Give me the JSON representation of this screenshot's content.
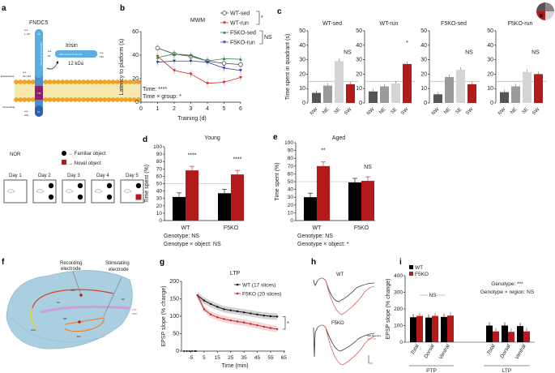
{
  "panel_labels": {
    "a": "a",
    "b": "b",
    "c": "c",
    "d": "d",
    "e": "e",
    "f": "f",
    "g": "g",
    "h": "h",
    "i": "i"
  },
  "panel_a": {
    "protein": "FNDC5",
    "sp": "SP",
    "fn_domain": "Fibronectin III domain",
    "tm": "TM",
    "ct": "Ct",
    "aa_1": "a.a.",
    "aa_1_range": "1–28",
    "aa_29_140_a": "a.a.",
    "aa_29_140": "29–140",
    "aa_209_a": "a.a.",
    "aa_209": "209",
    "extracellular": "Extracellular",
    "intracellular": "Intracellular",
    "irisin": "Irisin",
    "irisin_domain": "Fibronectin III domain",
    "irisin_start_a": "a.a.",
    "irisin_start": "29",
    "irisin_end_a": "a.a.",
    "irisin_end": "140",
    "irisin_size": "12 kDa"
  },
  "nor": {
    "title": "NOR",
    "familiar": "→ Familiar object",
    "novel": "→ Novel object",
    "days": [
      "Day 1",
      "Day 2",
      "Day 3",
      "Day 4",
      "Day 5"
    ],
    "colors": {
      "familiar": "#000000",
      "novel": "#b31b1b"
    }
  },
  "panel_f": {
    "recording": [
      "Recording",
      "electrode"
    ],
    "stimulating": [
      "Stimulating",
      "electrode"
    ],
    "regions": {
      "ca1": "CA1",
      "ca3": "CA3",
      "dg": "DG",
      "sc": "SC",
      "ec": "EC",
      "lpp": "LPP",
      "mpp": "MPP",
      "mp": "MP"
    }
  },
  "panel_h": {
    "wt": "WT",
    "f5ko": "F5KO",
    "baseline": "Baseline",
    "ltp": "LTP"
  },
  "chart_data": [
    {
      "id": "b",
      "type": "line",
      "title": "MWM",
      "xlabel": "Training (d)",
      "ylabel": "Latency to platform (s)",
      "x": [
        1,
        2,
        3,
        4,
        5,
        6
      ],
      "xlim": [
        0,
        6
      ],
      "xticks": [
        0,
        1,
        2,
        3,
        4,
        5,
        6
      ],
      "ylim": [
        0,
        60
      ],
      "yticks": [
        0,
        20,
        40,
        60
      ],
      "series": [
        {
          "name": "WT-sed",
          "values": [
            46,
            41,
            39,
            35,
            33,
            32
          ],
          "color": "#444444",
          "marker": "open-circle"
        },
        {
          "name": "WT-run",
          "values": [
            39,
            27,
            24,
            16,
            17,
            21
          ],
          "color": "#d22b2b",
          "marker": "triangle-down"
        },
        {
          "name": "F5KO-sed",
          "values": [
            38,
            41,
            40,
            35,
            37,
            36.5
          ],
          "color": "#2e8b4e",
          "marker": "triangle-up"
        },
        {
          "name": "F5KO-run",
          "values": [
            34,
            35,
            35,
            34,
            29,
            27
          ],
          "color": "#3a3f9a",
          "marker": "triangle-down"
        }
      ],
      "legend": "top-right",
      "bracket_wt": "*",
      "bracket_f5ko": "NS",
      "stats": [
        "Time: ****",
        "Time × group: *"
      ]
    },
    {
      "id": "c",
      "type": "bar",
      "ylabel": "Time spent in quadrant (s)",
      "categories": [
        "NW",
        "NE",
        "SE",
        "SW"
      ],
      "ylim": [
        0,
        50
      ],
      "yticks": [
        0,
        10,
        20,
        30,
        40,
        50
      ],
      "reference": 15,
      "colors": [
        "#555555",
        "#9a9a9a",
        "#d4d4d4",
        "#b31b1b"
      ],
      "subplots": [
        {
          "title": "WT-sed",
          "values": [
            7,
            12,
            29,
            13
          ],
          "annotation": "NS",
          "annotation_index": 3
        },
        {
          "title": "WT-run",
          "values": [
            8,
            11.5,
            13.5,
            27
          ],
          "annotation": "*",
          "annotation_index": 3
        },
        {
          "title": "F5KO-sed",
          "values": [
            6,
            18,
            23,
            13
          ],
          "annotation": "NS",
          "annotation_index": 3
        },
        {
          "title": "F5KO-run",
          "values": [
            7.5,
            11.5,
            21.5,
            20
          ],
          "annotation": "NS",
          "annotation_index": 3
        }
      ]
    },
    {
      "id": "d",
      "type": "bar",
      "title": "Young",
      "ylabel": "Time spent (%)",
      "categories": [
        "WT",
        "F5KO"
      ],
      "ylim": [
        0,
        100
      ],
      "yticks": [
        0,
        10,
        20,
        30,
        40,
        50,
        60,
        70,
        80,
        90,
        100
      ],
      "reference": 50,
      "series": [
        {
          "name": "Familiar object",
          "values": [
            32,
            37
          ],
          "color": "#000000"
        },
        {
          "name": "Novel object",
          "values": [
            68,
            62.5
          ],
          "color": "#b31b1b"
        }
      ],
      "annotations": [
        "****",
        "****"
      ],
      "stats": [
        "Genotype: NS",
        "Genotype × object: NS"
      ]
    },
    {
      "id": "e",
      "type": "bar",
      "title": "Aged",
      "ylabel": "Time spent (%)",
      "categories": [
        "WT",
        "F5KO"
      ],
      "ylim": [
        0,
        100
      ],
      "yticks": [
        0,
        10,
        20,
        30,
        40,
        50,
        60,
        70,
        80,
        90,
        100
      ],
      "reference": 50,
      "series": [
        {
          "name": "Familiar object",
          "values": [
            30,
            49
          ],
          "color": "#000000"
        },
        {
          "name": "Novel object",
          "values": [
            70,
            51
          ],
          "color": "#b31b1b"
        }
      ],
      "annotations": [
        "**",
        "NS"
      ],
      "stats": [
        "Genotype: NS",
        "Genotype × object: *"
      ]
    },
    {
      "id": "g",
      "type": "line",
      "title": "LTP",
      "xlabel": "Time (min)",
      "ylabel": "EPSP slope (% change)",
      "xticks": [
        -5,
        5,
        15,
        25,
        35,
        45,
        55,
        65
      ],
      "xlim": [
        -12,
        66
      ],
      "ylim": [
        0,
        200
      ],
      "yticks": [
        0,
        50,
        100,
        150,
        200
      ],
      "baseline_x": [
        -10,
        -8,
        -6,
        -4,
        -2,
        -1
      ],
      "baseline_y": [
        0,
        0,
        0,
        0,
        0,
        0
      ],
      "x": [
        0,
        5,
        10,
        15,
        20,
        25,
        30,
        35,
        40,
        45,
        50,
        55,
        60
      ],
      "series": [
        {
          "name": "WT (17 slices)",
          "values": [
            160,
            145,
            135,
            127,
            120,
            117,
            114,
            111,
            108,
            105,
            102,
            100,
            99
          ],
          "color": "#111111"
        },
        {
          "name": "F5KO (20 slices)",
          "values": [
            160,
            120,
            105,
            97,
            92,
            88,
            85,
            82,
            78,
            74,
            70,
            66,
            63
          ],
          "color": "#c0282b"
        }
      ],
      "annotation": "*"
    },
    {
      "id": "i",
      "type": "bar",
      "ylabel": "EPSP slope (% change)",
      "groups": [
        "PTP",
        "LTP"
      ],
      "categories": [
        "Total",
        "Dorsal",
        "Ventral",
        "Total",
        "Dorsal",
        "Ventral"
      ],
      "ylim": [
        0,
        400
      ],
      "yticks": [
        0,
        100,
        200,
        300,
        400
      ],
      "series": [
        {
          "name": "WT",
          "values": [
            150,
            148,
            152,
            100,
            100,
            97
          ],
          "color": "#000000"
        },
        {
          "name": "F5KO",
          "values": [
            158,
            158,
            160,
            65,
            62,
            65
          ],
          "color": "#b31b1b"
        }
      ],
      "ptp_annotation": "NS",
      "stats": [
        "Genotype: ***",
        "Genotype × region: NS"
      ]
    }
  ]
}
